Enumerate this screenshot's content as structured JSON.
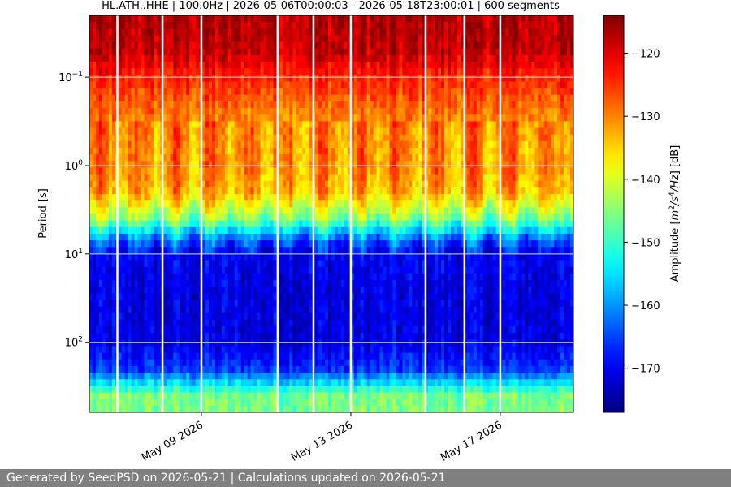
{
  "chart_data": {
    "type": "heatmap",
    "title": "HL.ATH..HHE | 100.0Hz | 2026-05-06T00:00:03 - 2026-05-18T23:00:01 | 600 segments",
    "xlabel": "",
    "ylabel": "Period [s]",
    "x_scale": "time",
    "x_range": [
      "2026-05-06T00:00:03",
      "2026-05-18T23:00:01"
    ],
    "x_tick_labels": [
      "May 09 2026",
      "May 13 2026",
      "May 17 2026"
    ],
    "x_ticks": [
      "2026-05-09",
      "2026-05-13",
      "2026-05-17"
    ],
    "y_scale": "log",
    "y_inverted": true,
    "y_range": [
      0.02,
      620
    ],
    "y_ticks": [
      0.1,
      1,
      10,
      100
    ],
    "y_tick_labels": [
      "10",
      "10",
      "10",
      "10"
    ],
    "y_tick_exponents": [
      "−1",
      "0",
      "1",
      "2"
    ],
    "grid": true,
    "colormap": "jet",
    "colorbar": {
      "label": "Amplitude [m²/s⁴/Hz] [dB]",
      "label_plain": "Amplitude [",
      "label_unit_base": "m",
      "label_unit_sup1": "2",
      "label_unit_mid": "/s",
      "label_unit_sup2": "4",
      "label_unit_end": "/Hz",
      "label_suffix": "] [dB]",
      "range": [
        -177,
        -114
      ],
      "ticks": [
        -120,
        -130,
        -140,
        -150,
        -160,
        -170
      ],
      "tick_labels": [
        "−120",
        "−130",
        "−140",
        "−150",
        "−160",
        "−170"
      ]
    },
    "period_profile_db": [
      {
        "period": 0.02,
        "db": -117
      },
      {
        "period": 0.05,
        "db": -118
      },
      {
        "period": 0.1,
        "db": -124
      },
      {
        "period": 0.3,
        "db": -130
      },
      {
        "period": 1,
        "db": -131
      },
      {
        "period": 2,
        "db": -133
      },
      {
        "period": 4,
        "db": -145
      },
      {
        "period": 7,
        "db": -163
      },
      {
        "period": 10,
        "db": -170
      },
      {
        "period": 30,
        "db": -171
      },
      {
        "period": 100,
        "db": -171
      },
      {
        "period": 200,
        "db": -166
      },
      {
        "period": 400,
        "db": -146
      }
    ],
    "data_gaps": [
      "2026-05-06T18:00",
      "2026-05-07T23:00",
      "2026-05-09T00:00",
      "2026-05-11T01:00",
      "2026-05-12T00:00",
      "2026-05-13T00:00",
      "2026-05-15T00:00",
      "2026-05-16T01:00",
      "2026-05-17T00:00"
    ]
  },
  "footer": {
    "text": "Generated by SeedPSD on 2026-05-21 | Calculations updated on 2026-05-21"
  },
  "colors": {
    "footer_bg": "#808080",
    "footer_text": "#ffffff",
    "grid": "#d9d9d9"
  }
}
